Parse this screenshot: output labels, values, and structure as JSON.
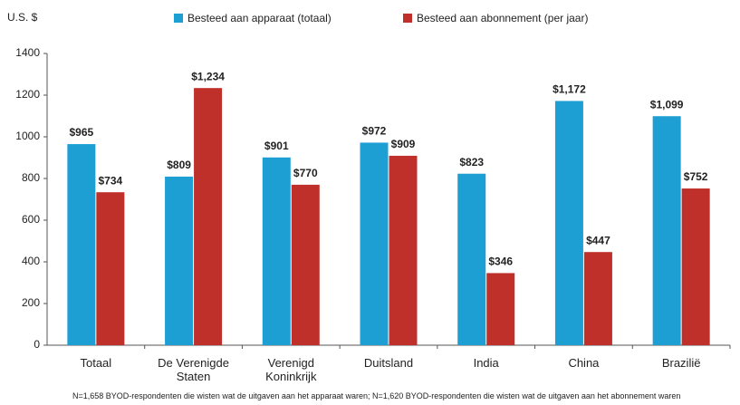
{
  "chart_data": {
    "type": "bar",
    "y_label": "U.S. $",
    "footnote": "N=1,658 BYOD-respondenten die wisten wat de uitgaven aan het apparaat waren; N=1,620 BYOD-respondenten die wisten wat de uitgaven aan het abonnement waren",
    "categories": [
      "Totaal",
      "De Verenigde Staten",
      "Verenigd Koninkrijk",
      "Duitsland",
      "India",
      "China",
      "Brazilië"
    ],
    "series": [
      {
        "name": "Besteed aan apparaat (totaal)",
        "color": "#1e9fd4",
        "values": [
          965,
          809,
          901,
          972,
          823,
          1172,
          1099
        ],
        "value_labels": [
          "$965",
          "$809",
          "$901",
          "$972",
          "$823",
          "$1,172",
          "$1,099"
        ]
      },
      {
        "name": "Besteed aan abonnement (per jaar)",
        "color": "#c0302b",
        "values": [
          734,
          1234,
          770,
          909,
          346,
          447,
          752
        ],
        "value_labels": [
          "$734",
          "$1,234",
          "$770",
          "$909",
          "$346",
          "$447",
          "$752"
        ]
      }
    ],
    "ylim": [
      0,
      1400
    ],
    "yticks": [
      0,
      200,
      400,
      600,
      800,
      1000,
      1200,
      1400
    ],
    "grid": false
  }
}
